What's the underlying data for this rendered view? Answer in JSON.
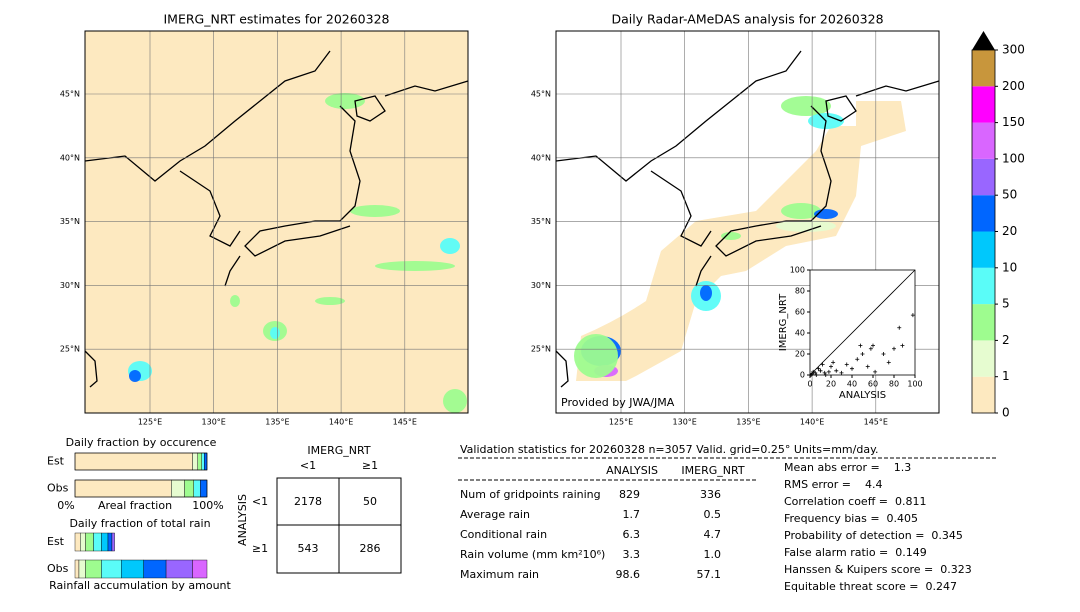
{
  "left_map": {
    "title": "IMERG_NRT estimates for 20260328",
    "lat_labels": [
      "45°N",
      "40°N",
      "35°N",
      "30°N",
      "25°N"
    ],
    "lon_labels": [
      "125°E",
      "130°E",
      "135°E",
      "140°E",
      "145°E"
    ]
  },
  "right_map": {
    "title": "Daily Radar-AMeDAS analysis for 20260328",
    "lat_labels": [
      "45°N",
      "40°N",
      "35°N",
      "30°N",
      "25°N"
    ],
    "lon_labels": [
      "125°E",
      "130°E",
      "135°E",
      "140°E",
      "145°E"
    ],
    "credit": "Provided by JWA/JMA"
  },
  "colorbar": {
    "levels": [
      0,
      1,
      2,
      5,
      10,
      20,
      50,
      100,
      150,
      200,
      300
    ],
    "colors": [
      "#fde9c0",
      "#e6fcd0",
      "#9efc8f",
      "#5afcf8",
      "#00c8fc",
      "#0066ff",
      "#9966ff",
      "#d966ff",
      "#ff00ff",
      "#c8963c"
    ],
    "extend_color": "#000000"
  },
  "chart_data": {
    "type": "scatter",
    "xlabel": "ANALYSIS",
    "ylabel": "IMERG_NRT",
    "xlim": [
      0,
      100
    ],
    "ylim": [
      0,
      100
    ],
    "xticks": [
      0,
      20,
      40,
      60,
      80,
      100
    ],
    "yticks": [
      0,
      20,
      40,
      60,
      80,
      100
    ],
    "x": [
      1,
      2,
      3,
      5,
      6,
      8,
      10,
      12,
      14,
      15,
      18,
      20,
      22,
      25,
      30,
      35,
      40,
      45,
      48,
      50,
      55,
      58,
      60,
      62,
      70,
      75,
      80,
      85,
      88,
      98
    ],
    "y": [
      0,
      1,
      3,
      2,
      0,
      6,
      4,
      10,
      2,
      0,
      3,
      8,
      12,
      4,
      2,
      10,
      6,
      15,
      28,
      20,
      8,
      25,
      28,
      3,
      20,
      12,
      25,
      45,
      28,
      57
    ],
    "color": "#000000"
  },
  "occurrence": {
    "title": "Daily fraction by occurence",
    "rows": [
      "Est",
      "Obs"
    ],
    "left_label": "0%",
    "axis_label": "Areal fraction",
    "right_label": "100%",
    "est": [
      0.89,
      0.04,
      0.03,
      0.02,
      0.02
    ],
    "obs": [
      0.73,
      0.1,
      0.07,
      0.05,
      0.05
    ],
    "colors": [
      "#fde9c0",
      "#e6fcd0",
      "#9efc8f",
      "#5afcf8",
      "#0066ff"
    ]
  },
  "total_rain": {
    "title": "Daily fraction of total rain",
    "rows": [
      "Est",
      "Obs"
    ],
    "axis_label": "Rainfall accumulation by amount",
    "est": [
      0.04,
      0.04,
      0.06,
      0.06,
      0.05,
      0.03,
      0.02,
      0.0
    ],
    "obs": [
      0.03,
      0.05,
      0.12,
      0.15,
      0.17,
      0.17,
      0.2,
      0.11
    ],
    "colors": [
      "#fde9c0",
      "#e6fcd0",
      "#9efc8f",
      "#5afcf8",
      "#00c8fc",
      "#0066ff",
      "#9966ff",
      "#d966ff"
    ]
  },
  "contingency": {
    "col_title": "IMERG_NRT",
    "row_title": "ANALYSIS",
    "cols": [
      "<1",
      "≥1"
    ],
    "rows": [
      "<1",
      "≥1"
    ],
    "cells": [
      [
        2178,
        50
      ],
      [
        543,
        286
      ]
    ]
  },
  "validation": {
    "header": "Validation statistics for 20260328  n=3057 Valid. grid=0.25° Units=mm/day.",
    "columns": [
      "ANALYSIS",
      "IMERG_NRT"
    ],
    "rows": [
      [
        "Num of gridpoints raining",
        829,
        336
      ],
      [
        "Average rain",
        1.7,
        0.5
      ],
      [
        "Conditional rain",
        6.3,
        4.7
      ],
      [
        "Rain volume (mm km²10⁶)",
        3.3,
        1.0
      ],
      [
        "Maximum rain",
        98.6,
        57.1
      ]
    ],
    "value_labels": [
      [
        "829",
        "336"
      ],
      [
        "1.7",
        "0.5"
      ],
      [
        "6.3",
        "4.7"
      ],
      [
        "3.3",
        "1.0"
      ],
      [
        "98.6",
        "57.1"
      ]
    ],
    "scores": [
      "Mean abs error =    1.3",
      "RMS error =    4.4",
      "Correlation coeff =  0.811",
      "Frequency bias =  0.405",
      "Probability of detection =  0.345",
      "False alarm ratio =  0.149",
      "Hanssen & Kuipers score =  0.323",
      "Equitable threat score =  0.247"
    ]
  }
}
